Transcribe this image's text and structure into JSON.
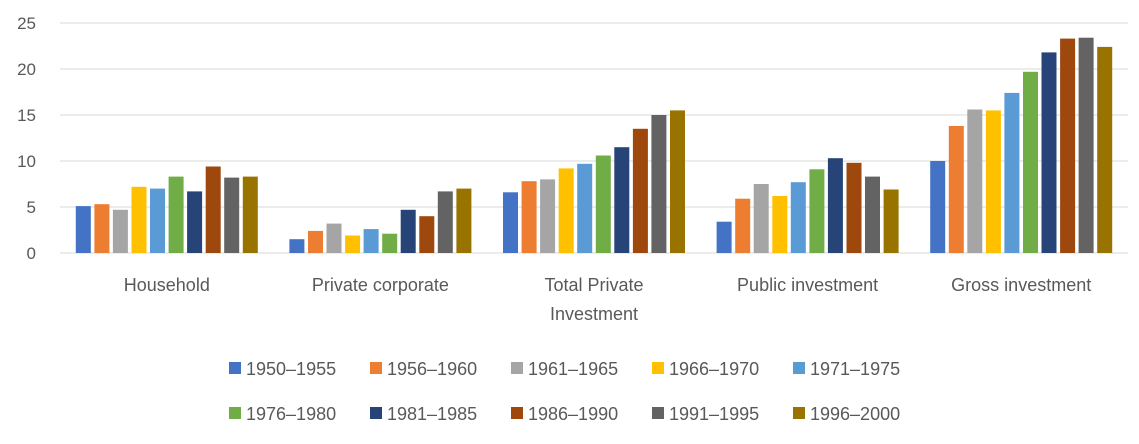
{
  "chart_data": {
    "type": "bar",
    "title": "",
    "xlabel": "",
    "ylabel": "",
    "ylim": [
      0,
      25
    ],
    "yticks": [
      0,
      5,
      10,
      15,
      20,
      25
    ],
    "grid": true,
    "legend_position": "bottom",
    "categories": [
      [
        "Household"
      ],
      [
        "Private corporate"
      ],
      [
        "Total Private",
        "Investment"
      ],
      [
        "Public investment"
      ],
      [
        "Gross investment"
      ]
    ],
    "series": [
      {
        "name": "1950–1955",
        "color": "#4472c4",
        "values": [
          5.1,
          1.5,
          6.6,
          3.4,
          10.0
        ]
      },
      {
        "name": "1956–1960",
        "color": "#ed7d31",
        "values": [
          5.3,
          2.4,
          7.8,
          5.9,
          13.8
        ]
      },
      {
        "name": "1961–1965",
        "color": "#a5a5a5",
        "values": [
          4.7,
          3.2,
          8.0,
          7.5,
          15.6
        ]
      },
      {
        "name": "1966–1970",
        "color": "#ffc000",
        "values": [
          7.2,
          1.9,
          9.2,
          6.2,
          15.5
        ]
      },
      {
        "name": "1971–1975",
        "color": "#5b9bd5",
        "values": [
          7.0,
          2.6,
          9.7,
          7.7,
          17.4
        ]
      },
      {
        "name": "1976–1980",
        "color": "#70ad47",
        "values": [
          8.3,
          2.1,
          10.6,
          9.1,
          19.7
        ]
      },
      {
        "name": "1981–1985",
        "color": "#264478",
        "values": [
          6.7,
          4.7,
          11.5,
          10.3,
          21.8
        ]
      },
      {
        "name": "1986–1990",
        "color": "#9e480e",
        "values": [
          9.4,
          4.0,
          13.5,
          9.8,
          23.3
        ]
      },
      {
        "name": "1991–1995",
        "color": "#636363",
        "values": [
          8.2,
          6.7,
          15.0,
          8.3,
          23.4
        ]
      },
      {
        "name": "1996–2000",
        "color": "#997300",
        "values": [
          8.3,
          7.0,
          15.5,
          6.9,
          22.4
        ]
      }
    ]
  }
}
